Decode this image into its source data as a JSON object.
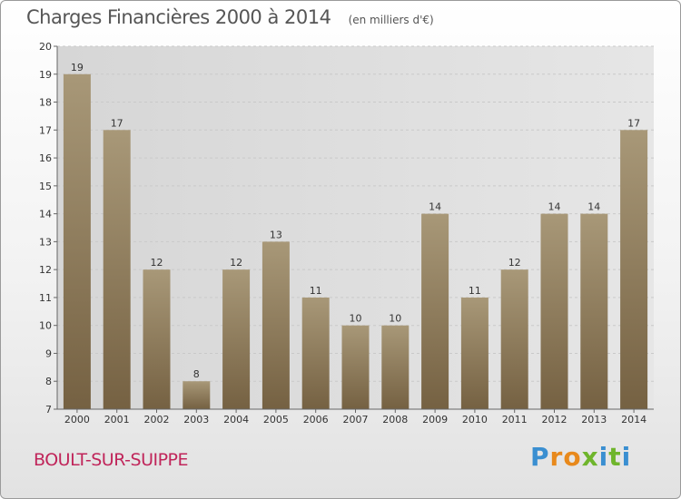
{
  "header": {
    "title": "Charges Financières 2000 à 2014",
    "subtitle": "(en milliers d'€)"
  },
  "footer": {
    "commune": "BOULT-SUR-SUIPPE",
    "logo": "Proxiti"
  },
  "colors": {
    "bar_top": "#a89878",
    "bar_bottom": "#756142",
    "grid": "#c9c9c9",
    "plot_background": "#dcdcdc",
    "commune_text": "#c0255a"
  },
  "chart_data": {
    "type": "bar",
    "title": "Charges Financières 2000 à 2014",
    "subtitle": "(en milliers d'€)",
    "xlabel": "",
    "ylabel": "",
    "categories": [
      "2000",
      "2001",
      "2002",
      "2003",
      "2004",
      "2005",
      "2006",
      "2007",
      "2008",
      "2009",
      "2010",
      "2011",
      "2012",
      "2013",
      "2014"
    ],
    "values": [
      19,
      17,
      12,
      8,
      12,
      13,
      11,
      10,
      10,
      14,
      11,
      12,
      14,
      14,
      17
    ],
    "ylim": [
      7,
      20
    ],
    "yticks": [
      7,
      8,
      9,
      10,
      11,
      12,
      13,
      14,
      15,
      16,
      17,
      18,
      19,
      20
    ],
    "grid": true,
    "legend": "none",
    "data_labels": true
  }
}
